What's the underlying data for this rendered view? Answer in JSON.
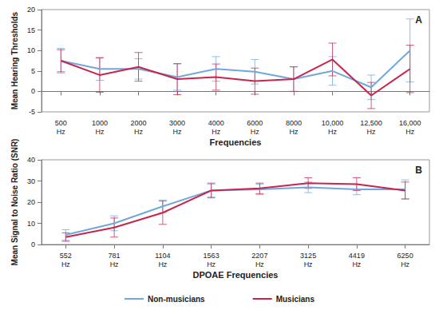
{
  "chart_data": [
    {
      "type": "line",
      "title": "A",
      "x_label": "Frequencies",
      "y_label": "Mean Hearing Thresholds",
      "categories": [
        "500 Hz",
        "1000 Hz",
        "2000 Hz",
        "3000 Hz",
        "4000 Hz",
        "6000 Hz",
        "8000 Hz",
        "10,000 Hz",
        "12,500 Hz",
        "16,000 Hz"
      ],
      "ylim": [
        -5,
        20
      ],
      "yticks": [
        -5,
        0,
        5,
        10,
        15,
        20
      ],
      "grid": false,
      "series": [
        {
          "name": "Non-musicians",
          "color": "#6fa8dc",
          "values": [
            7.5,
            5.5,
            5.5,
            3.5,
            5.5,
            4.8,
            3,
            5,
            1,
            10
          ],
          "errors": [
            3,
            2.8,
            2.5,
            3.2,
            3,
            3,
            3,
            3.5,
            3,
            7.7
          ]
        },
        {
          "name": "Musicians",
          "color": "#c8254c",
          "values": [
            7.5,
            4,
            6,
            3,
            3.5,
            2.5,
            3,
            7.8,
            -1,
            5.5
          ],
          "errors": [
            2.7,
            4.2,
            3.5,
            3.8,
            3.2,
            3.2,
            3,
            4,
            3.2,
            5.8
          ]
        }
      ]
    },
    {
      "type": "line",
      "title": "B",
      "x_label": "DPOAE Frequencies",
      "y_label": "Mean Signal to Noise Ratio (SNR)",
      "categories": [
        "552 Hz",
        "781 Hz",
        "1104 Hz",
        "1563 Hz",
        "2207 Hz",
        "3125 Hz",
        "4419 Hz",
        "6250 Hz"
      ],
      "ylim": [
        0,
        40
      ],
      "yticks": [
        0,
        10,
        20,
        30,
        40
      ],
      "grid": false,
      "legend": "bottom",
      "series": [
        {
          "name": "Non-musicians",
          "color": "#6fa8dc",
          "values": [
            4.5,
            10,
            18,
            25.5,
            26,
            27,
            26,
            26
          ],
          "errors": [
            2.5,
            3.5,
            3,
            3,
            2.5,
            2.5,
            2.5,
            4.5
          ]
        },
        {
          "name": "Musicians",
          "color": "#c8254c",
          "values": [
            3.5,
            8,
            15,
            25.5,
            26.5,
            29,
            28.5,
            25.5
          ],
          "errors": [
            2,
            4.5,
            5.5,
            3.5,
            2.5,
            2.5,
            3,
            4
          ]
        }
      ]
    }
  ]
}
